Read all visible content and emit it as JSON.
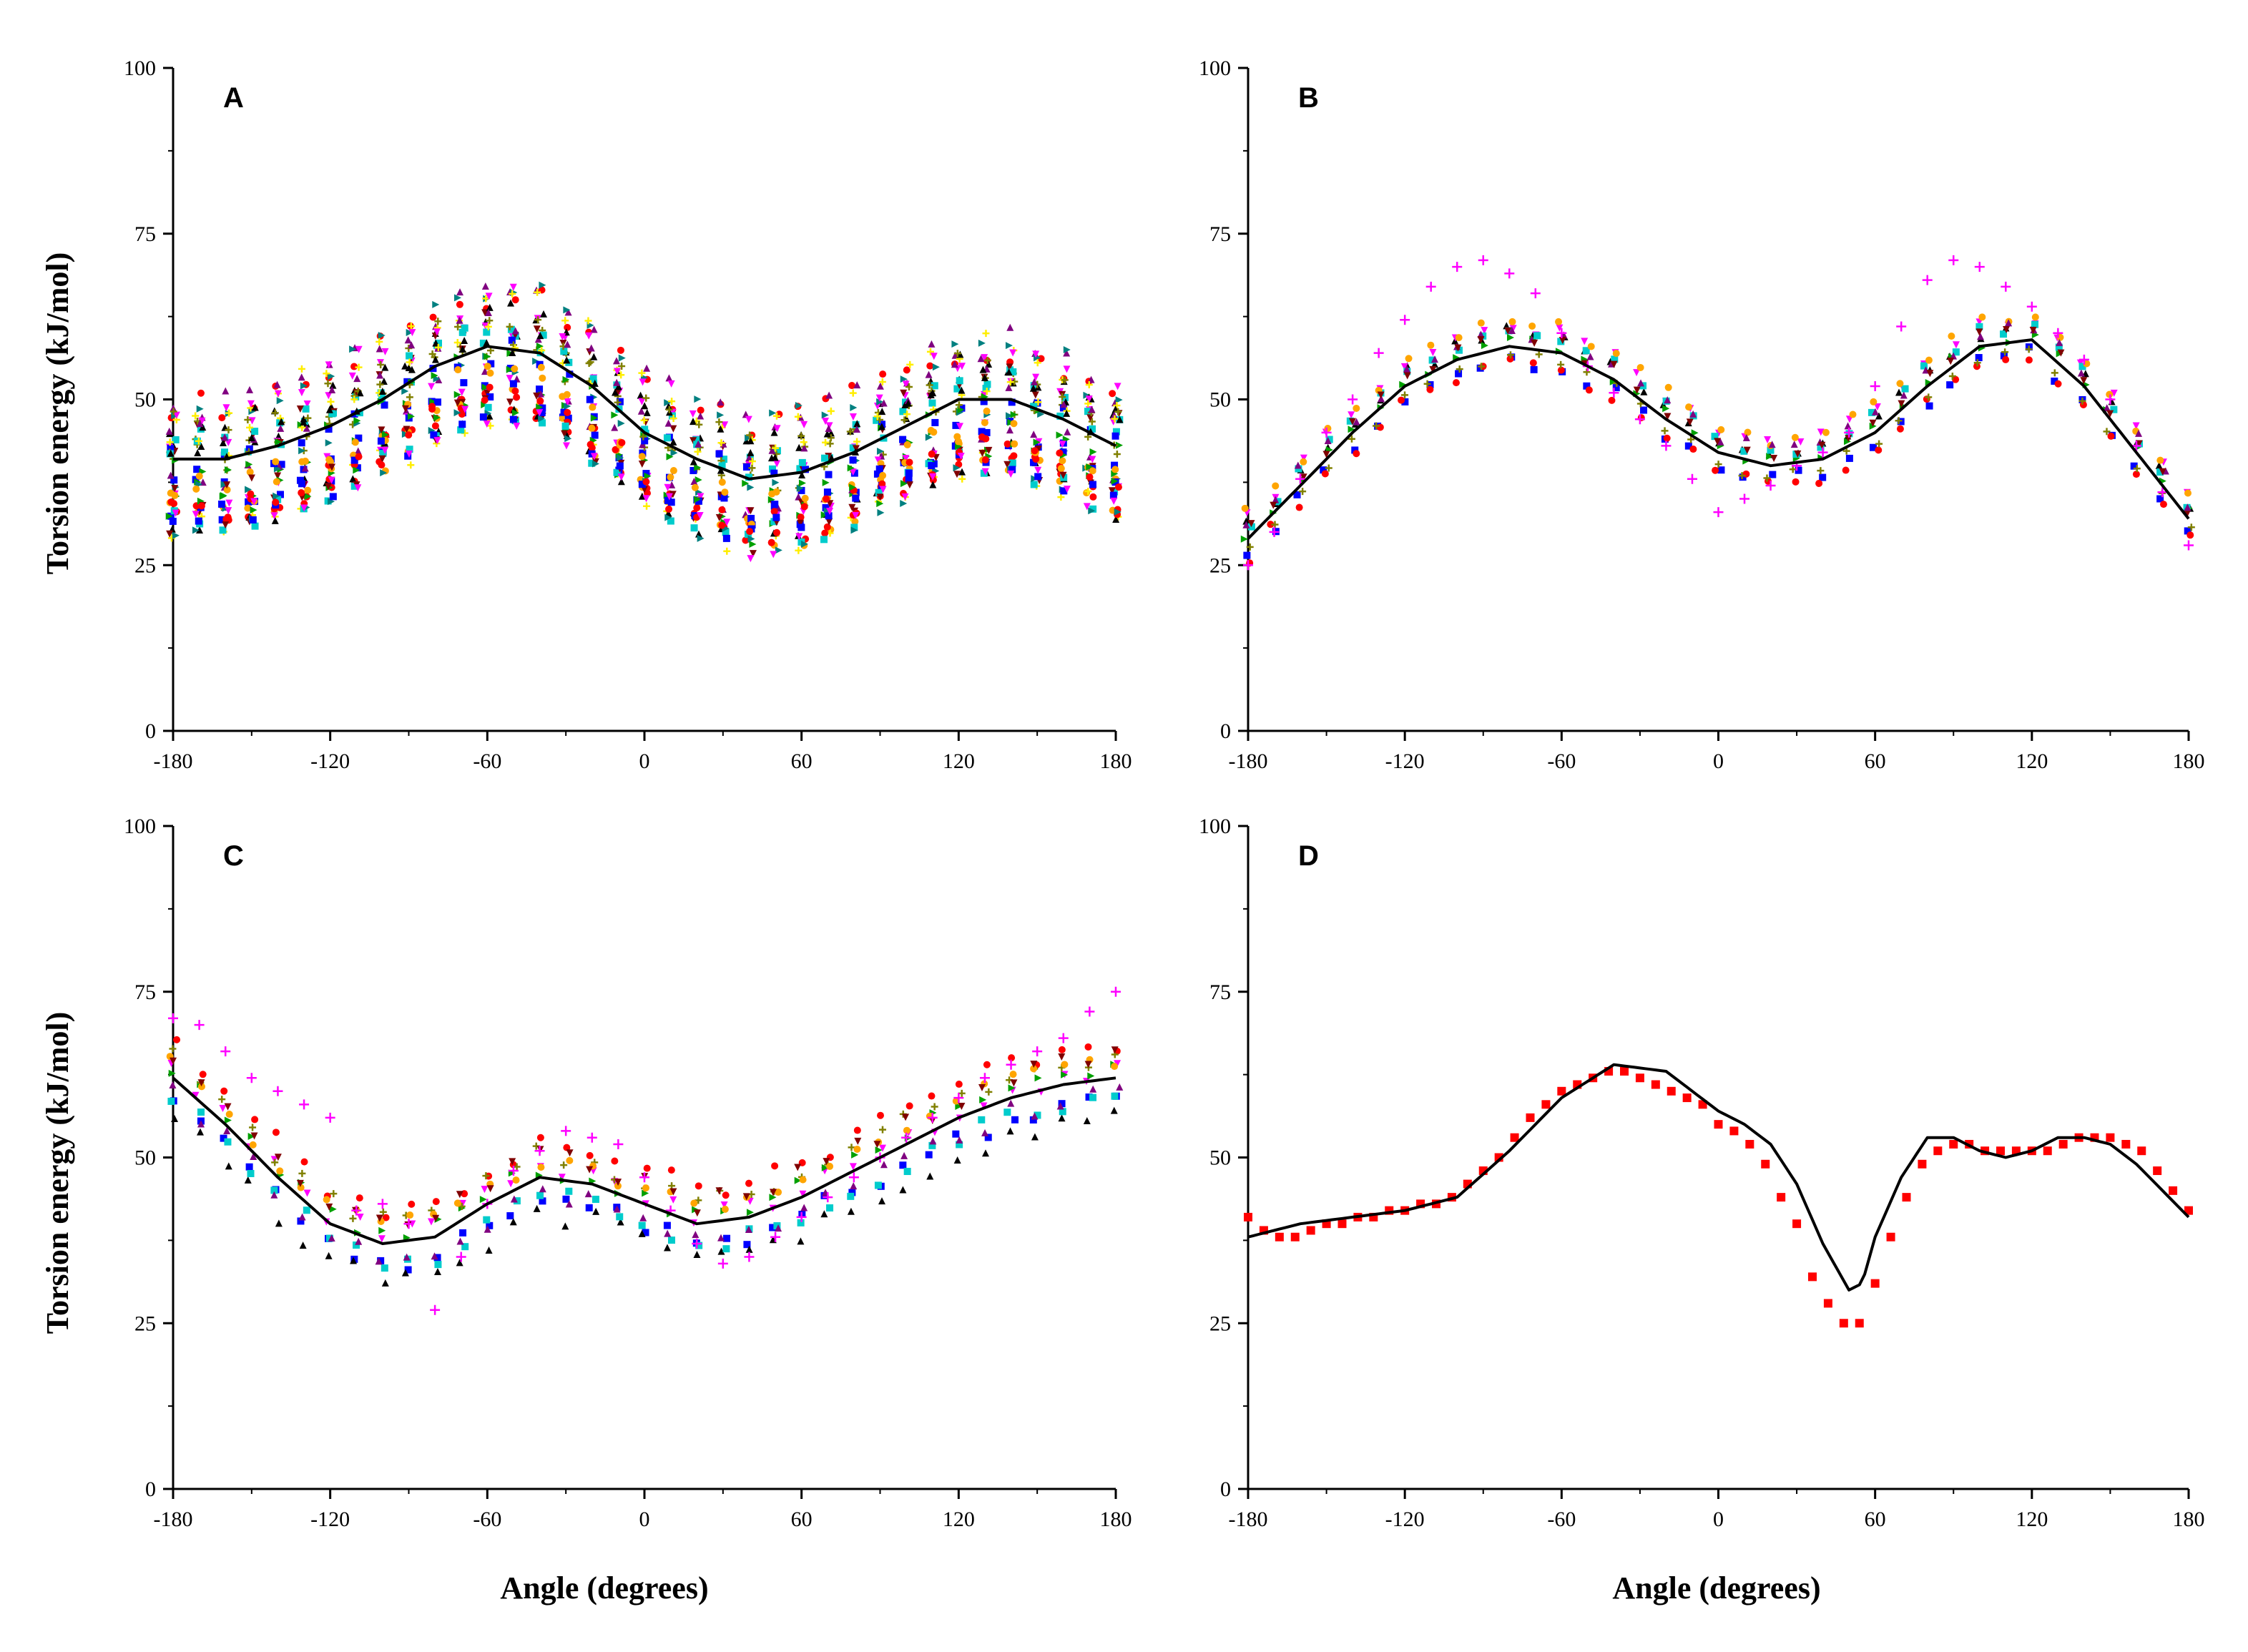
{
  "figure": {
    "ylabel": "Torsion energy (kJ/mol)",
    "xlabel": "Angle (degrees)"
  },
  "marker_palette": [
    "#0000ff",
    "#ff0000",
    "#000000",
    "#ff00ff",
    "#00a000",
    "#808000",
    "#00cccc",
    "#ffa500",
    "#800080",
    "#800000",
    "#008080",
    "#ffee00"
  ],
  "chart_data": [
    {
      "panel": "A",
      "type": "scatter",
      "xlim": [
        -180,
        180
      ],
      "ylim": [
        0,
        100
      ],
      "xticks": [
        "-180",
        "-120",
        "-60",
        "0",
        "60",
        "120",
        "180"
      ],
      "yticks": [
        "0",
        "25",
        "50",
        "75",
        "100"
      ],
      "fit": {
        "x": [
          -180,
          -160,
          -140,
          -120,
          -100,
          -80,
          -60,
          -40,
          -20,
          0,
          20,
          40,
          60,
          80,
          100,
          120,
          140,
          160,
          180
        ],
        "y": [
          41,
          41,
          43,
          46,
          50,
          55,
          58,
          57,
          52,
          45,
          41,
          38,
          39,
          42,
          46,
          50,
          50,
          47,
          43
        ]
      },
      "scatter": {
        "n_series": 40,
        "spread": 10,
        "seed": 7
      }
    },
    {
      "panel": "B",
      "type": "scatter",
      "xlim": [
        -180,
        180
      ],
      "ylim": [
        0,
        100
      ],
      "xticks": [
        "-180",
        "-120",
        "-60",
        "0",
        "60",
        "120",
        "180"
      ],
      "yticks": [
        "0",
        "25",
        "50",
        "75",
        "100"
      ],
      "fit": {
        "x": [
          -180,
          -160,
          -140,
          -120,
          -100,
          -80,
          -60,
          -40,
          -20,
          0,
          20,
          40,
          60,
          80,
          100,
          120,
          140,
          160,
          180
        ],
        "y": [
          29,
          37,
          45,
          52,
          56,
          58,
          57,
          53,
          47,
          42,
          40,
          41,
          45,
          52,
          58,
          59,
          52,
          42,
          32
        ]
      },
      "highlight": {
        "color": "#ff00ff",
        "x": [
          -180,
          -170,
          -160,
          -150,
          -140,
          -130,
          -120,
          -110,
          -100,
          -90,
          -80,
          -70,
          -60,
          -50,
          -40,
          -30,
          -20,
          -10,
          0,
          10,
          20,
          30,
          40,
          50,
          60,
          70,
          80,
          90,
          100,
          110,
          120,
          130,
          140,
          150,
          160,
          170,
          180
        ],
        "y": [
          25,
          30,
          38,
          45,
          50,
          57,
          62,
          67,
          70,
          71,
          69,
          66,
          60,
          55,
          51,
          47,
          43,
          38,
          33,
          35,
          37,
          40,
          42,
          45,
          52,
          61,
          68,
          71,
          70,
          67,
          64,
          60,
          56,
          50,
          43,
          36,
          28
        ]
      },
      "scatter": {
        "n_series": 10,
        "spread": 4,
        "seed": 11
      }
    },
    {
      "panel": "C",
      "type": "scatter",
      "xlim": [
        -180,
        180
      ],
      "ylim": [
        0,
        100
      ],
      "xticks": [
        "-180",
        "-120",
        "-60",
        "0",
        "60",
        "120",
        "180"
      ],
      "yticks": [
        "0",
        "25",
        "50",
        "75",
        "100"
      ],
      "fit": {
        "x": [
          -180,
          -160,
          -140,
          -120,
          -100,
          -80,
          -60,
          -40,
          -20,
          0,
          20,
          40,
          60,
          80,
          100,
          120,
          140,
          160,
          180
        ],
        "y": [
          62,
          55,
          47,
          40,
          37,
          38,
          43,
          47,
          46,
          43,
          40,
          41,
          44,
          48,
          52,
          56,
          59,
          61,
          62
        ]
      },
      "highlight": {
        "color": "#ff00ff",
        "x": [
          -180,
          -170,
          -160,
          -150,
          -140,
          -130,
          -120,
          -110,
          -100,
          -90,
          -80,
          -70,
          -60,
          -50,
          -40,
          -30,
          -20,
          -10,
          0,
          10,
          20,
          30,
          40,
          50,
          60,
          70,
          80,
          90,
          100,
          110,
          120,
          130,
          140,
          150,
          160,
          170,
          180
        ],
        "y": [
          71,
          70,
          66,
          62,
          60,
          58,
          56,
          42,
          43,
          40,
          27,
          35,
          43,
          48,
          51,
          54,
          53,
          52,
          47,
          42,
          37,
          34,
          35,
          38,
          41,
          44,
          47,
          50,
          53,
          56,
          59,
          62,
          64,
          66,
          68,
          72,
          75
        ]
      },
      "scatter": {
        "n_series": 10,
        "spread": 6,
        "seed": 23
      }
    },
    {
      "panel": "D",
      "type": "scatter",
      "xlim": [
        -180,
        180
      ],
      "ylim": [
        0,
        100
      ],
      "xticks": [
        "-180",
        "-120",
        "-60",
        "0",
        "60",
        "120",
        "180"
      ],
      "yticks": [
        "0",
        "25",
        "50",
        "75",
        "100"
      ],
      "fit": {
        "x": [
          -180,
          -160,
          -140,
          -120,
          -100,
          -80,
          -60,
          -40,
          -20,
          0,
          10,
          20,
          30,
          40,
          50,
          55,
          60,
          70,
          80,
          90,
          100,
          110,
          120,
          130,
          140,
          150,
          160,
          170,
          180
        ],
        "y": [
          38,
          40,
          41,
          42,
          44,
          51,
          59,
          64,
          63,
          57,
          55,
          52,
          46,
          37,
          30,
          31,
          38,
          47,
          53,
          53,
          51,
          50,
          51,
          53,
          53,
          52,
          49,
          45,
          41
        ]
      },
      "points": {
        "color": "#ff0000",
        "x": [
          -180,
          -174,
          -168,
          -162,
          -156,
          -150,
          -144,
          -138,
          -132,
          -126,
          -120,
          -114,
          -108,
          -102,
          -96,
          -90,
          -84,
          -78,
          -72,
          -66,
          -60,
          -54,
          -48,
          -42,
          -36,
          -30,
          -24,
          -18,
          -12,
          -6,
          0,
          6,
          12,
          18,
          24,
          30,
          36,
          42,
          48,
          54,
          60,
          66,
          72,
          78,
          84,
          90,
          96,
          102,
          108,
          114,
          120,
          126,
          132,
          138,
          144,
          150,
          156,
          162,
          168,
          174,
          180
        ],
        "y": [
          41,
          39,
          38,
          38,
          39,
          40,
          40,
          41,
          41,
          42,
          42,
          43,
          43,
          44,
          46,
          48,
          50,
          53,
          56,
          58,
          60,
          61,
          62,
          63,
          63,
          62,
          61,
          60,
          59,
          58,
          55,
          54,
          52,
          49,
          44,
          40,
          32,
          28,
          25,
          25,
          31,
          38,
          44,
          49,
          51,
          52,
          52,
          51,
          51,
          51,
          51,
          51,
          52,
          53,
          53,
          53,
          52,
          51,
          48,
          45,
          42
        ]
      },
      "scatter": {
        "n_series": 0,
        "spread": 0,
        "seed": 1
      }
    }
  ]
}
